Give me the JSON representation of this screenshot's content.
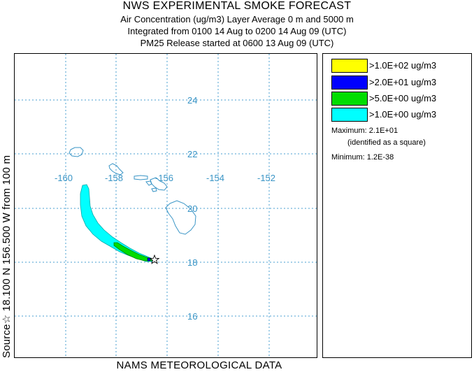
{
  "title": "NWS EXPERIMENTAL SMOKE FORECAST",
  "subtitle_lines": [
    "Air Concentration (ug/m3) Layer Average    0 m and  5000 m",
    "Integrated from 0100 14 Aug to 0200 14 Aug 09 (UTC)",
    "PM25 Release started at 0600 13 Aug 09 (UTC)"
  ],
  "source_label": "Source☆ 18.100  N 156.500  W     from   100 m",
  "bottom_label": "NAMS METEOROLOGICAL DATA",
  "map": {
    "lon_labels": [
      "-160",
      "-158",
      "-156",
      "-154",
      "-152"
    ],
    "lat_labels": [
      "24",
      "22",
      "20",
      "18",
      "16"
    ],
    "grid_color": "#4a9fd0",
    "coast_color": "#3a95c6",
    "source_marker": "star-icon"
  },
  "legend": {
    "items": [
      {
        "label": ">1.0E+02 ug/m3",
        "color": "#ffff00"
      },
      {
        "label": ">2.0E+01 ug/m3",
        "color": "#0000ff"
      },
      {
        "label": ">5.0E+00 ug/m3",
        "color": "#00dd00"
      },
      {
        "label": ">1.0E+00 ug/m3",
        "color": "#00ffff"
      }
    ],
    "maximum": "Maximum: 2.1E+01",
    "maximum_note": "(identified as a square)",
    "minimum": "Minimum: 1.2E-38"
  }
}
